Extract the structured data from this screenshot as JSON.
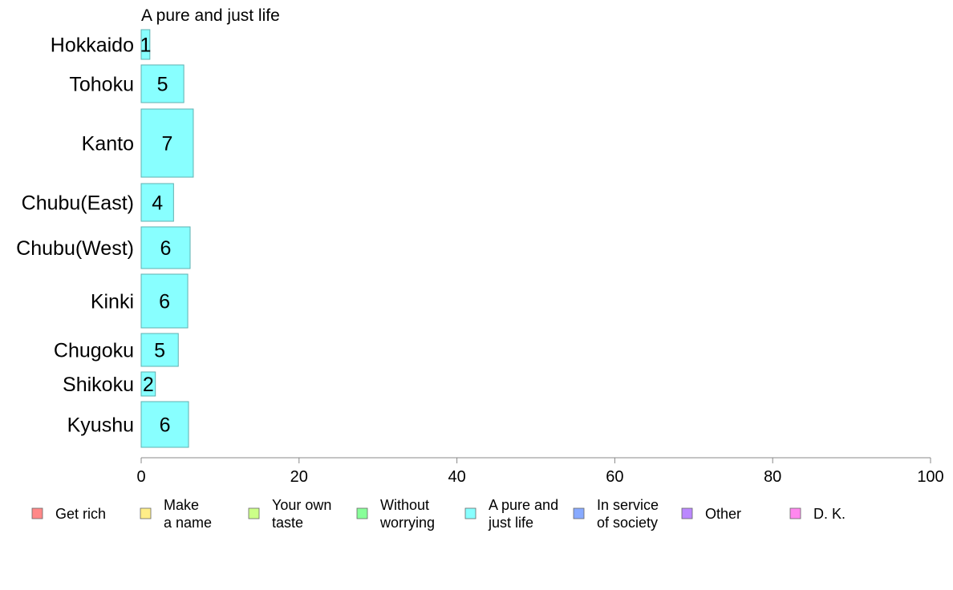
{
  "chart_data": {
    "type": "bar",
    "orientation": "horizontal",
    "title": "A pure and just life",
    "categories": [
      "Hokkaido",
      "Tohoku",
      "Kanto",
      "Chubu(East)",
      "Chubu(West)",
      "Kinki",
      "Chugoku",
      "Shikoku",
      "Kyushu"
    ],
    "values": [
      1,
      5,
      7,
      4,
      6,
      6,
      5,
      2,
      6
    ],
    "bar_widths_shown": [
      1.1,
      5.4,
      6.6,
      4.1,
      6.2,
      5.9,
      4.7,
      1.8,
      6.0
    ],
    "bar_color": "#88ffff",
    "bar_edge_color": "#5fb0b0",
    "xlim": [
      0,
      100
    ],
    "xticks": [
      0,
      20,
      40,
      60,
      80,
      100
    ],
    "xlabel": "",
    "ylabel": "",
    "grid": false,
    "legend_position": "bottom",
    "legend": [
      {
        "lines": [
          "Get rich"
        ],
        "color": "#ff8888"
      },
      {
        "lines": [
          "Make",
          "a name"
        ],
        "color": "#ffee88"
      },
      {
        "lines": [
          "Your own",
          "taste"
        ],
        "color": "#ccff88"
      },
      {
        "lines": [
          "Without",
          "worrying"
        ],
        "color": "#88ff99"
      },
      {
        "lines": [
          "A pure and",
          "just life"
        ],
        "color": "#88ffff"
      },
      {
        "lines": [
          "In service",
          "of society"
        ],
        "color": "#88aaff"
      },
      {
        "lines": [
          "Other"
        ],
        "color": "#bb88ff"
      },
      {
        "lines": [
          "D. K."
        ],
        "color": "#ff88ee"
      }
    ]
  }
}
